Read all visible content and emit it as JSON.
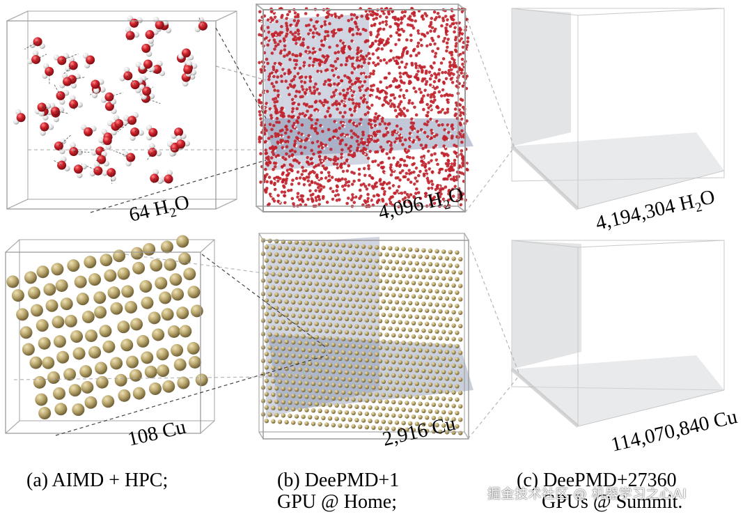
{
  "panels": {
    "water": {
      "small_count": "64",
      "medium_count": "4,096",
      "large_count": "4,194,304",
      "formula_main": "H",
      "formula_sub": "2",
      "formula_tail": "O"
    },
    "copper": {
      "small_label": "108 Cu",
      "medium_label": "2,916 Cu",
      "large_label": "114,070,840 Cu"
    }
  },
  "captions": {
    "a_line1": "(a) AIMD + HPC;",
    "b_line1": "(b) DeePMD+1",
    "b_line2": "GPU @ Home;",
    "c_line1": "(c) DeePMD+27360",
    "c_line2": "GPUs @ Summit."
  },
  "watermark": "掘金技术社区 @ 机器学习之心AI",
  "colors": {
    "oxygen": "#c0202a",
    "hydrogen": "#e6e6e6",
    "copper": "#b6a36a",
    "box_edge": "#9a9a9a",
    "slab": "#7b86a8"
  }
}
